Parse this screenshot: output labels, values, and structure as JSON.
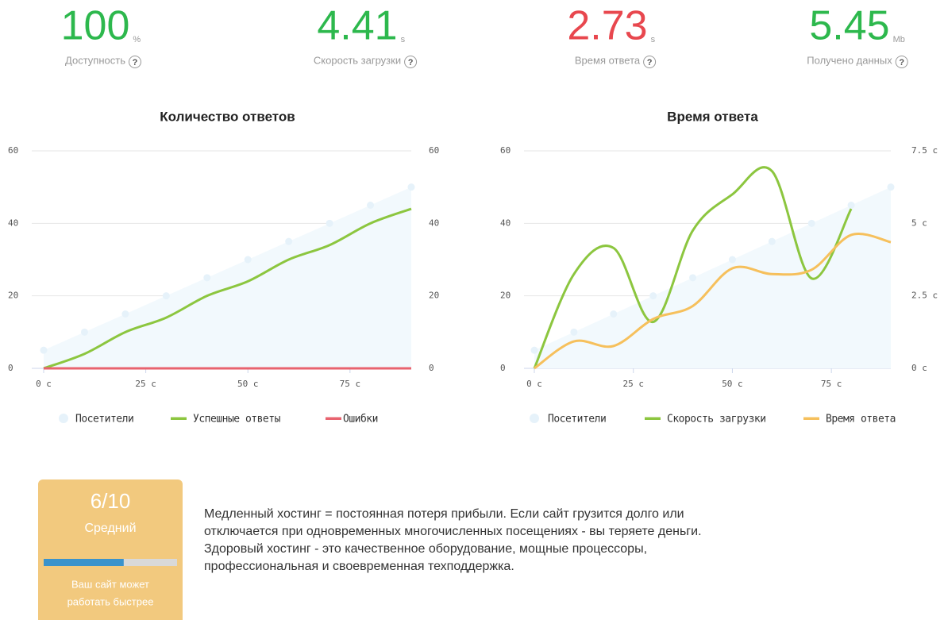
{
  "metrics": [
    {
      "value": "100",
      "unit": "%",
      "label": "Доступность",
      "color": "#2db84d"
    },
    {
      "value": "4.41",
      "unit": "s",
      "label": "Скорость загрузки",
      "color": "#2db84d"
    },
    {
      "value": "2.73",
      "unit": "s",
      "label": "Время ответа",
      "color": "#e8474e"
    },
    {
      "value": "5.45",
      "unit": "Mb",
      "label": "Получено данных",
      "color": "#2db84d"
    }
  ],
  "help_icon": "?",
  "chart_data": [
    {
      "type": "line",
      "title": "Количество ответов",
      "x": [
        0,
        10,
        20,
        30,
        40,
        50,
        60,
        70,
        80,
        90
      ],
      "xlim": [
        0,
        90
      ],
      "xticks": [
        {
          "value": 0,
          "label": "0 c"
        },
        {
          "value": 25,
          "label": "25 c"
        },
        {
          "value": 50,
          "label": "50 c"
        },
        {
          "value": 75,
          "label": "75 c"
        }
      ],
      "ylim": [
        0,
        60
      ],
      "yticks": [
        0,
        20,
        40,
        60
      ],
      "y2lim": [
        0,
        60
      ],
      "y2ticks": [
        0,
        20,
        40,
        60
      ],
      "grid": true,
      "series": [
        {
          "name": "Посетители",
          "color": "#e6f2fa",
          "area": true,
          "values": [
            5,
            10,
            15,
            20,
            25,
            30,
            35,
            40,
            45,
            50
          ]
        },
        {
          "name": "Успешные ответы",
          "color": "#8cc63f",
          "values": [
            0,
            4,
            10,
            14,
            20,
            24,
            30,
            34,
            40,
            44
          ]
        },
        {
          "name": "Ошибки",
          "color": "#e8636f",
          "values": [
            0,
            0,
            0,
            0,
            0,
            0,
            0,
            0,
            0,
            0
          ]
        }
      ]
    },
    {
      "type": "line",
      "title": "Время ответа",
      "x": [
        0,
        10,
        20,
        30,
        40,
        50,
        60,
        70,
        80,
        90
      ],
      "xlim": [
        0,
        90
      ],
      "xticks": [
        {
          "value": 0,
          "label": "0 c"
        },
        {
          "value": 25,
          "label": "25 c"
        },
        {
          "value": 50,
          "label": "50 c"
        },
        {
          "value": 75,
          "label": "75 c"
        }
      ],
      "ylim": [
        0,
        60
      ],
      "yticks": [
        0,
        20,
        40,
        60
      ],
      "y2lim": [
        0,
        7.5
      ],
      "y2ticks": [
        {
          "value": 0,
          "label": "0 c"
        },
        {
          "value": 2.5,
          "label": "2.5 c"
        },
        {
          "value": 5,
          "label": "5 c"
        },
        {
          "value": 7.5,
          "label": "7.5 c"
        }
      ],
      "grid": true,
      "series": [
        {
          "name": "Посетители",
          "color": "#e6f2fa",
          "area": true,
          "values": [
            5,
            10,
            15,
            20,
            25,
            30,
            35,
            40,
            45,
            50
          ]
        },
        {
          "name": "Скорость загрузки",
          "color": "#8cc63f",
          "axis": "y2",
          "values": [
            0,
            3.25,
            4.15,
            1.6,
            4.75,
            6.0,
            6.8,
            3.1,
            5.5,
            null
          ]
        },
        {
          "name": "Время ответа",
          "color": "#f6c05c",
          "axis": "y2",
          "values": [
            0,
            0.93,
            0.77,
            1.7,
            2.15,
            3.45,
            3.25,
            3.4,
            4.6,
            4.35
          ]
        }
      ]
    }
  ],
  "score": {
    "label": "6/10",
    "rating": "Средний",
    "progress": 60,
    "hint": [
      "Ваш сайт может",
      "работать быстрее"
    ]
  },
  "text": [
    "Медленный хостинг = постоянная потеря прибыли. Если сайт грузится долго или",
    "отключается при одновременных многочисленных посещениях - вы теряете деньги.",
    "Здоровый хостинг - это качественное оборудование, мощные процессоры,",
    "профессиональная и своевременная техподдержка."
  ]
}
